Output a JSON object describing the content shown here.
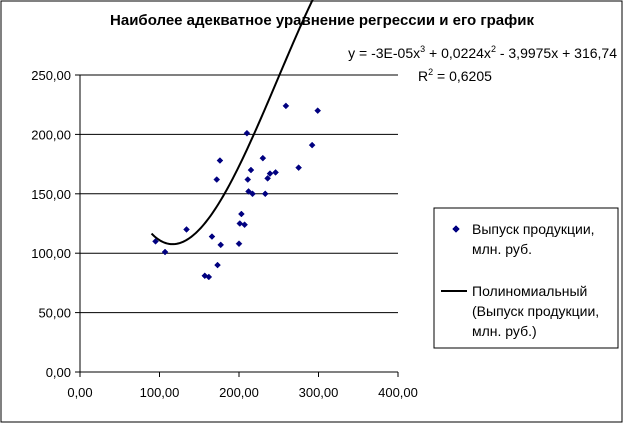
{
  "chart_data": {
    "type": "scatter",
    "title": "Наиболее адекватное уравнение регрессии и его график",
    "equation": {
      "prefix": "y = -3E-05x",
      "exp1": "3",
      "mid": " + 0,0224x",
      "exp2": "2",
      "suffix": " - 3,9975x + 316,74"
    },
    "r_squared": {
      "prefix": "R",
      "exp": "2",
      "suffix": " = 0,6205"
    },
    "xlim": [
      0,
      400
    ],
    "ylim": [
      0,
      250
    ],
    "x_ticks": [
      0,
      100,
      200,
      300,
      400
    ],
    "x_tick_labels": [
      "0,00",
      "100,00",
      "200,00",
      "300,00",
      "400,00"
    ],
    "y_ticks": [
      0,
      50,
      100,
      150,
      200,
      250
    ],
    "y_tick_labels": [
      "0,00",
      "50,00",
      "100,00",
      "150,00",
      "200,00",
      "250,00"
    ],
    "grid": "horizontal",
    "legend_position": "right",
    "series": [
      {
        "name": "Выпуск продукции, млн. руб.",
        "name_lines": [
          "Выпуск продукции,",
          "млн. руб."
        ],
        "kind": "points",
        "color": "#000080",
        "points": [
          [
            95,
            110
          ],
          [
            107,
            101
          ],
          [
            134,
            120
          ],
          [
            157,
            81
          ],
          [
            162,
            80
          ],
          [
            166,
            114
          ],
          [
            172,
            162
          ],
          [
            173,
            90
          ],
          [
            176,
            178
          ],
          [
            177,
            107
          ],
          [
            200,
            108
          ],
          [
            201,
            125
          ],
          [
            203,
            133
          ],
          [
            207,
            124
          ],
          [
            210,
            201
          ],
          [
            211,
            162
          ],
          [
            212,
            152
          ],
          [
            215,
            170
          ],
          [
            217,
            150
          ],
          [
            230,
            180
          ],
          [
            233,
            150
          ],
          [
            236,
            163
          ],
          [
            239,
            167
          ],
          [
            246,
            168
          ],
          [
            259,
            224
          ],
          [
            275,
            172
          ],
          [
            292,
            191
          ],
          [
            299,
            220
          ]
        ]
      },
      {
        "name": "Полиномиальный (Выпуск продукции, млн. руб.)",
        "name_lines": [
          "Полиномиальный",
          "(Выпуск продукции,",
          "млн. руб.)"
        ],
        "kind": "trendline",
        "color": "#000000",
        "coefficients": [
          -3e-05,
          0.0224,
          -3.9975,
          316.74
        ],
        "x_range": [
          90,
          300
        ]
      }
    ]
  }
}
